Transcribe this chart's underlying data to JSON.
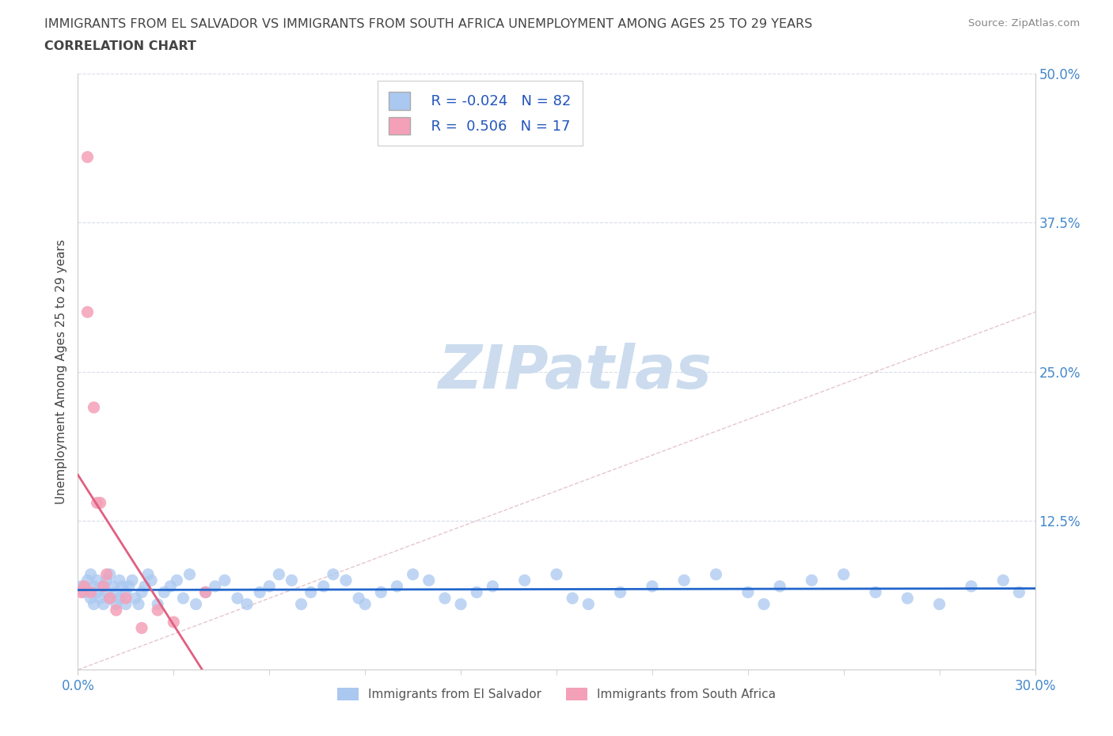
{
  "title_line1": "IMMIGRANTS FROM EL SALVADOR VS IMMIGRANTS FROM SOUTH AFRICA UNEMPLOYMENT AMONG AGES 25 TO 29 YEARS",
  "title_line2": "CORRELATION CHART",
  "source": "Source: ZipAtlas.com",
  "ylabel": "Unemployment Among Ages 25 to 29 years",
  "xlim": [
    0.0,
    0.3
  ],
  "ylim": [
    0.0,
    0.5
  ],
  "ytick_positions": [
    0.125,
    0.25,
    0.375,
    0.5
  ],
  "ytick_labels": [
    "12.5%",
    "25.0%",
    "37.5%",
    "50.0%"
  ],
  "xtick_positions": [
    0.0,
    0.3
  ],
  "xtick_labels": [
    "0.0%",
    "30.0%"
  ],
  "minor_xticks": [
    0.03,
    0.06,
    0.09,
    0.12,
    0.15,
    0.18,
    0.21,
    0.24,
    0.27
  ],
  "el_salvador_R": -0.024,
  "el_salvador_N": 82,
  "south_africa_R": 0.506,
  "south_africa_N": 17,
  "el_salvador_color": "#aac8f0",
  "el_salvador_line_color": "#2266cc",
  "south_africa_color": "#f4a0b8",
  "south_africa_line_color": "#e06080",
  "diag_line_color": "#e0b8c0",
  "watermark_text": "ZIPatlas",
  "watermark_color": "#ccdcee",
  "tick_label_color": "#4488cc",
  "grid_color": "#d8dde8",
  "legend_label_color": "#2255bb",
  "bottom_legend_color": "#555555",
  "el_salvador_x": [
    0.001,
    0.002,
    0.003,
    0.004,
    0.004,
    0.005,
    0.005,
    0.006,
    0.006,
    0.007,
    0.008,
    0.008,
    0.009,
    0.009,
    0.01,
    0.01,
    0.011,
    0.012,
    0.012,
    0.013,
    0.013,
    0.014,
    0.015,
    0.015,
    0.016,
    0.017,
    0.018,
    0.019,
    0.02,
    0.021,
    0.022,
    0.023,
    0.025,
    0.027,
    0.029,
    0.031,
    0.033,
    0.035,
    0.037,
    0.04,
    0.043,
    0.046,
    0.05,
    0.053,
    0.057,
    0.06,
    0.063,
    0.067,
    0.07,
    0.073,
    0.077,
    0.08,
    0.084,
    0.088,
    0.09,
    0.095,
    0.1,
    0.105,
    0.11,
    0.115,
    0.12,
    0.125,
    0.13,
    0.14,
    0.15,
    0.155,
    0.16,
    0.17,
    0.18,
    0.19,
    0.2,
    0.21,
    0.215,
    0.22,
    0.23,
    0.24,
    0.25,
    0.26,
    0.27,
    0.28,
    0.29,
    0.295
  ],
  "el_salvador_y": [
    0.07,
    0.065,
    0.075,
    0.06,
    0.08,
    0.055,
    0.07,
    0.065,
    0.075,
    0.06,
    0.055,
    0.07,
    0.065,
    0.075,
    0.06,
    0.08,
    0.07,
    0.055,
    0.065,
    0.075,
    0.06,
    0.07,
    0.055,
    0.065,
    0.07,
    0.075,
    0.06,
    0.055,
    0.065,
    0.07,
    0.08,
    0.075,
    0.055,
    0.065,
    0.07,
    0.075,
    0.06,
    0.08,
    0.055,
    0.065,
    0.07,
    0.075,
    0.06,
    0.055,
    0.065,
    0.07,
    0.08,
    0.075,
    0.055,
    0.065,
    0.07,
    0.08,
    0.075,
    0.06,
    0.055,
    0.065,
    0.07,
    0.08,
    0.075,
    0.06,
    0.055,
    0.065,
    0.07,
    0.075,
    0.08,
    0.06,
    0.055,
    0.065,
    0.07,
    0.075,
    0.08,
    0.065,
    0.055,
    0.07,
    0.075,
    0.08,
    0.065,
    0.06,
    0.055,
    0.07,
    0.075,
    0.065
  ],
  "south_africa_x": [
    0.001,
    0.002,
    0.003,
    0.003,
    0.004,
    0.005,
    0.006,
    0.007,
    0.008,
    0.009,
    0.01,
    0.012,
    0.015,
    0.02,
    0.025,
    0.03,
    0.04
  ],
  "south_africa_y": [
    0.065,
    0.07,
    0.43,
    0.3,
    0.065,
    0.22,
    0.14,
    0.14,
    0.07,
    0.08,
    0.06,
    0.05,
    0.06,
    0.035,
    0.05,
    0.04,
    0.065
  ]
}
